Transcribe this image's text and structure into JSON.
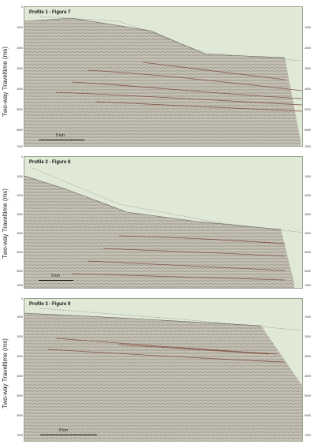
{
  "profiles": [
    {
      "title": "Profile 1 - Figure 7",
      "ylabel": "Two-way Traveltime (ms)",
      "ticks": [
        "0",
        "1000",
        "2000",
        "3000",
        "4000",
        "5000",
        "6000",
        "7000"
      ],
      "scale": "5 km"
    },
    {
      "title": "Profile 2 - Figure 8",
      "ylabel": "Two-way Traveltime (ms)",
      "ticks": [
        "0",
        "1000",
        "2000",
        "3000",
        "4000",
        "5000",
        "6000",
        "7000"
      ],
      "scale": "5 km"
    },
    {
      "title": "Profile 3 - Figure 9",
      "ylabel": "Two-way Traveltime (ms)",
      "ticks": [
        "0",
        "1000",
        "2000",
        "3000",
        "4000",
        "5000",
        "6000",
        "7000"
      ],
      "scale": "5 km"
    }
  ],
  "colors": {
    "background": "#dfe9d6",
    "seismic": "#b9b5a8",
    "reflector": "#7a3b2e",
    "frame": "#9aa38f"
  }
}
